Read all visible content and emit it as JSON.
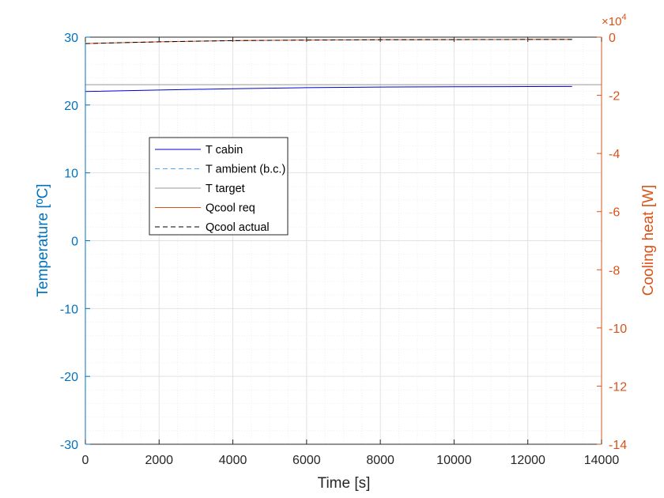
{
  "chart_data": {
    "type": "line",
    "xlabel": "Time [s]",
    "ylabel_left": "Temperature [ºC]",
    "ylabel_right": "Cooling heat [W]",
    "right_exponent_base": "×10",
    "right_exponent_power": "4",
    "xlim": [
      0,
      14000
    ],
    "ylim_left": [
      -30,
      30
    ],
    "ylim_right": [
      -14,
      0
    ],
    "right_axis_scale": 10000,
    "x_ticks": [
      "0",
      "2000",
      "4000",
      "6000",
      "8000",
      "10000",
      "12000",
      "14000"
    ],
    "y_left_ticks": [
      "30",
      "20",
      "10",
      "0",
      "-10",
      "-20",
      "-30"
    ],
    "y_right_ticks": [
      "0",
      "-2",
      "-4",
      "-6",
      "-8",
      "-10",
      "-12",
      "-14"
    ],
    "grid": true,
    "minor_grid": true,
    "legend_position": "upper-left inside",
    "series": [
      {
        "name": "T cabin",
        "axis": "left",
        "color": "#0000cc",
        "dash": "solid",
        "x": [
          0,
          2000,
          4000,
          6000,
          8000,
          10000,
          12000,
          13200
        ],
        "y": [
          22.0,
          22.2,
          22.4,
          22.55,
          22.65,
          22.7,
          22.72,
          22.73
        ]
      },
      {
        "name": "T ambient (b.c.)",
        "axis": "left",
        "color": "#4da6ff",
        "dash": "dashed",
        "x": [
          0,
          13200
        ],
        "y": [
          30,
          30
        ]
      },
      {
        "name": "T target",
        "axis": "left",
        "color": "#999999",
        "dash": "solid",
        "x": [
          0,
          14000
        ],
        "y": [
          23,
          23
        ]
      },
      {
        "name": "Qcool req",
        "axis": "right",
        "color": "#d95319",
        "dash": "solid",
        "x": [
          0,
          2000,
          4000,
          6000,
          8000,
          10000,
          12000,
          13200
        ],
        "y": [
          -0.22,
          -0.16,
          -0.12,
          -0.1,
          -0.09,
          -0.085,
          -0.08,
          -0.08
        ]
      },
      {
        "name": "Qcool actual",
        "axis": "right",
        "color": "#000000",
        "dash": "dashed",
        "x": [
          0,
          2000,
          4000,
          6000,
          8000,
          10000,
          12000,
          13200
        ],
        "y": [
          -0.22,
          -0.16,
          -0.12,
          -0.1,
          -0.09,
          -0.085,
          -0.08,
          -0.08
        ]
      }
    ]
  },
  "colors": {
    "left_axis": "#0072bd",
    "right_axis": "#d95319",
    "grid_major": "#e2e2e2",
    "grid_minor": "#efefef",
    "frame": "#262626"
  }
}
